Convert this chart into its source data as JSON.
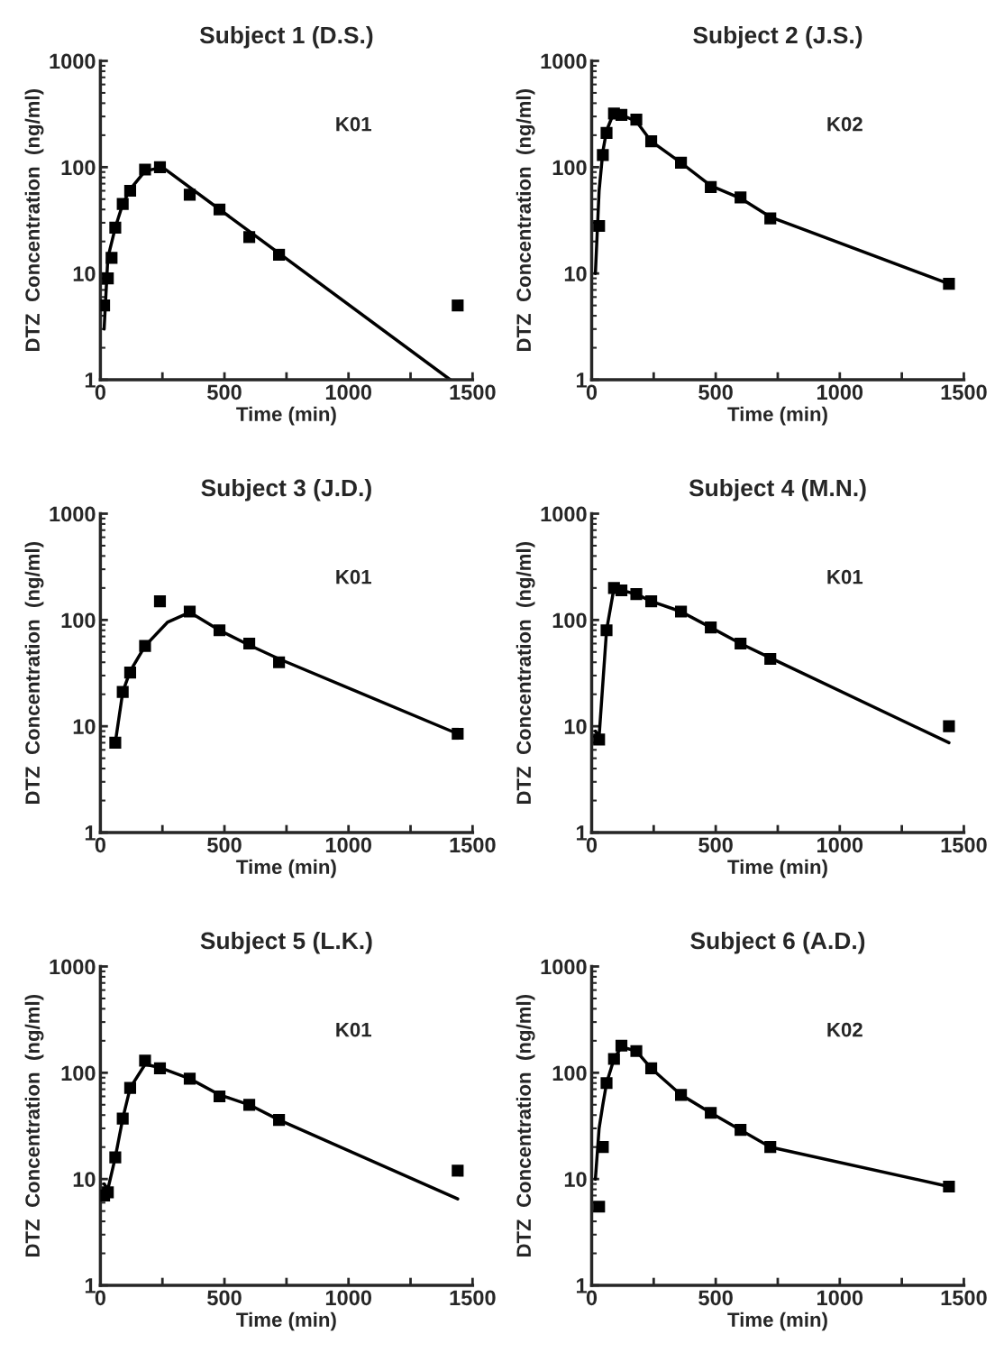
{
  "chart_data": [
    {
      "type": "scatter",
      "title": "Subject 1 (D.S.)",
      "xlabel": "Time (min)",
      "ylabel": "DTZ  Concentration  (ng/ml)",
      "annotations": [
        "K01"
      ],
      "log": "y",
      "marker": "square",
      "xlim": [
        0,
        1500
      ],
      "ylim": [
        1,
        1000
      ],
      "xticks": [
        0,
        {
          "value": 250,
          "label": null
        },
        500,
        {
          "value": 750,
          "label": null
        },
        1000,
        {
          "value": 1250,
          "label": null
        },
        1500
      ],
      "yticks": [
        1,
        10,
        100,
        1000
      ],
      "series": [
        {
          "color": "#000000",
          "x": [
            15,
            30,
            45,
            60,
            90,
            120,
            180,
            240,
            360,
            480,
            600,
            720,
            1440
          ],
          "values": [
            5,
            9,
            14,
            27,
            45,
            60,
            95,
            100,
            55,
            40,
            22,
            15,
            5
          ]
        },
        {
          "type": "line",
          "color": "#000000",
          "marker": "none",
          "x": [
            15,
            30,
            60,
            90,
            120,
            180,
            250,
            1410
          ],
          "values": [
            3,
            14,
            27,
            45,
            62,
            92,
            100,
            1
          ]
        }
      ]
    },
    {
      "type": "scatter",
      "title": "Subject 2 (J.S.)",
      "xlabel": "Time (min)",
      "ylabel": "DTZ  Concentration  (ng/ml)",
      "annotations": [
        "K02"
      ],
      "log": "y",
      "marker": "square",
      "xlim": [
        0,
        1500
      ],
      "ylim": [
        1,
        1000
      ],
      "xticks": [
        0,
        {
          "value": 250,
          "label": null
        },
        500,
        {
          "value": 750,
          "label": null
        },
        1000,
        {
          "value": 1250,
          "label": null
        },
        1500
      ],
      "yticks": [
        1,
        10,
        100,
        1000
      ],
      "series": [
        {
          "color": "#000000",
          "x": [
            30,
            45,
            60,
            90,
            120,
            180,
            240,
            360,
            480,
            600,
            720,
            1440
          ],
          "values": [
            28,
            130,
            210,
            320,
            310,
            280,
            175,
            110,
            65,
            52,
            33,
            8
          ]
        },
        {
          "type": "line",
          "color": "#000000",
          "marker": "none",
          "x": [
            15,
            30,
            45,
            60,
            90,
            120,
            180,
            240,
            360,
            480,
            600,
            720,
            1440
          ],
          "values": [
            10,
            60,
            140,
            220,
            330,
            310,
            270,
            175,
            110,
            67,
            51,
            34,
            8
          ]
        }
      ]
    },
    {
      "type": "scatter",
      "title": "Subject 3 (J.D.)",
      "xlabel": "Time (min)",
      "ylabel": "DTZ  Concentration  (ng/ml)",
      "annotations": [
        "K01"
      ],
      "log": "y",
      "marker": "square",
      "xlim": [
        0,
        1500
      ],
      "ylim": [
        1,
        1000
      ],
      "xticks": [
        0,
        {
          "value": 250,
          "label": null
        },
        500,
        {
          "value": 750,
          "label": null
        },
        1000,
        {
          "value": 1250,
          "label": null
        },
        1500
      ],
      "yticks": [
        1,
        10,
        100,
        1000
      ],
      "series": [
        {
          "color": "#000000",
          "x": [
            60,
            90,
            120,
            180,
            240,
            360,
            480,
            600,
            720,
            1440
          ],
          "values": [
            7,
            21,
            32,
            57,
            150,
            120,
            80,
            60,
            40,
            8.5
          ]
        },
        {
          "type": "line",
          "color": "#000000",
          "marker": "none",
          "x": [
            60,
            90,
            120,
            180,
            270,
            360,
            480,
            600,
            720,
            1440
          ],
          "values": [
            7,
            21,
            33,
            57,
            95,
            118,
            80,
            58,
            43,
            8.5
          ]
        }
      ]
    },
    {
      "type": "scatter",
      "title": "Subject 4 (M.N.)",
      "xlabel": "Time (min)",
      "ylabel": "DTZ  Concentration  (ng/ml)",
      "annotations": [
        "K01"
      ],
      "log": "y",
      "marker": "square",
      "xlim": [
        0,
        1500
      ],
      "ylim": [
        1,
        1000
      ],
      "xticks": [
        0,
        {
          "value": 250,
          "label": null
        },
        500,
        {
          "value": 750,
          "label": null
        },
        1000,
        {
          "value": 1250,
          "label": null
        },
        1500
      ],
      "yticks": [
        1,
        10,
        100,
        1000
      ],
      "series": [
        {
          "color": "#000000",
          "x": [
            30,
            60,
            90,
            120,
            180,
            240,
            360,
            480,
            600,
            720,
            1440
          ],
          "values": [
            7.5,
            80,
            200,
            190,
            175,
            150,
            120,
            85,
            60,
            43,
            10
          ]
        },
        {
          "type": "line",
          "color": "#000000",
          "marker": "none",
          "x": [
            15,
            30,
            60,
            90,
            120,
            180,
            240,
            360,
            480,
            600,
            720,
            1440
          ],
          "values": [
            9,
            8,
            80,
            200,
            190,
            175,
            150,
            120,
            85,
            60,
            44,
            7
          ]
        }
      ]
    },
    {
      "type": "scatter",
      "title": "Subject 5 (L.K.)",
      "xlabel": "Time (min)",
      "ylabel": "DTZ  Concentration  (ng/ml)",
      "annotations": [
        "K01"
      ],
      "log": "y",
      "marker": "square",
      "xlim": [
        0,
        1500
      ],
      "ylim": [
        1,
        1000
      ],
      "xticks": [
        0,
        {
          "value": 250,
          "label": null
        },
        500,
        {
          "value": 750,
          "label": null
        },
        1000,
        {
          "value": 1250,
          "label": null
        },
        1500
      ],
      "yticks": [
        1,
        10,
        100,
        1000
      ],
      "series": [
        {
          "color": "#000000",
          "x": [
            15,
            30,
            60,
            90,
            120,
            180,
            240,
            360,
            480,
            600,
            720,
            1440
          ],
          "values": [
            7,
            7.5,
            16,
            37,
            72,
            130,
            110,
            88,
            60,
            50,
            36,
            12
          ]
        },
        {
          "type": "line",
          "color": "#000000",
          "marker": "none",
          "x": [
            15,
            30,
            60,
            90,
            120,
            180,
            240,
            360,
            480,
            600,
            720,
            1440
          ],
          "values": [
            9,
            8,
            16,
            37,
            72,
            120,
            112,
            88,
            62,
            50,
            36,
            6.5
          ]
        }
      ]
    },
    {
      "type": "scatter",
      "title": "Subject 6 (A.D.)",
      "xlabel": "Time (min)",
      "ylabel": "DTZ  Concentration  (ng/ml)",
      "annotations": [
        "K02"
      ],
      "log": "y",
      "marker": "square",
      "xlim": [
        0,
        1500
      ],
      "ylim": [
        1,
        1000
      ],
      "xticks": [
        0,
        {
          "value": 250,
          "label": null
        },
        500,
        {
          "value": 750,
          "label": null
        },
        1000,
        {
          "value": 1250,
          "label": null
        },
        1500
      ],
      "yticks": [
        1,
        10,
        100,
        1000
      ],
      "series": [
        {
          "color": "#000000",
          "x": [
            30,
            45,
            60,
            90,
            120,
            180,
            240,
            360,
            480,
            600,
            720,
            1440
          ],
          "values": [
            5.5,
            20,
            80,
            135,
            180,
            160,
            110,
            62,
            42,
            29,
            20,
            8.5
          ]
        },
        {
          "type": "line",
          "color": "#000000",
          "marker": "none",
          "x": [
            15,
            30,
            45,
            60,
            90,
            120,
            180,
            240,
            360,
            480,
            600,
            720,
            1440
          ],
          "values": [
            10,
            30,
            50,
            80,
            135,
            175,
            160,
            110,
            62,
            42,
            29,
            20,
            8.5
          ]
        }
      ]
    }
  ]
}
